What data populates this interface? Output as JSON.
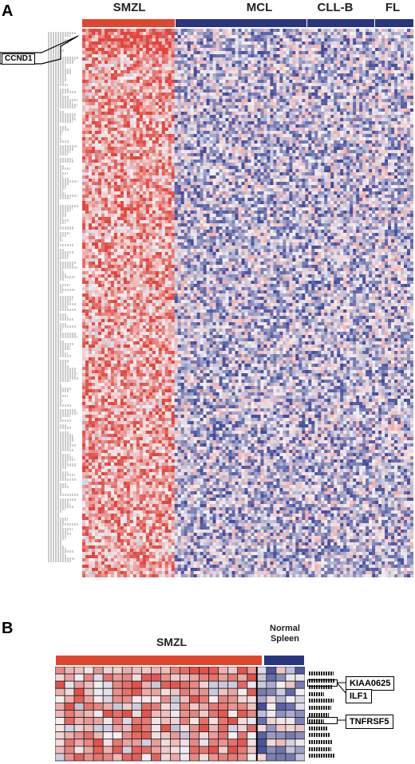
{
  "panel_a": {
    "label": "A",
    "groups": [
      {
        "label": "SMZL",
        "color": "#e0462e"
      },
      {
        "label": "MCL",
        "color": "#2a3580"
      },
      {
        "label": "CLL-B",
        "color": "#2a3580"
      },
      {
        "label": "FL",
        "color": "#2a3580"
      }
    ],
    "callout": "CCND1"
  },
  "panel_b": {
    "label": "B",
    "groups": [
      {
        "label": "SMZL",
        "color": "#e0462e"
      },
      {
        "label": "Normal\nSpleen",
        "color": "#2a3580"
      }
    ],
    "callouts": [
      "KIAA0625",
      "ILF1",
      "TNFRSF5"
    ]
  },
  "colors": {
    "high": "#e04a3a",
    "low": "#2a3a8a",
    "mid": "#f4f0f2"
  }
}
